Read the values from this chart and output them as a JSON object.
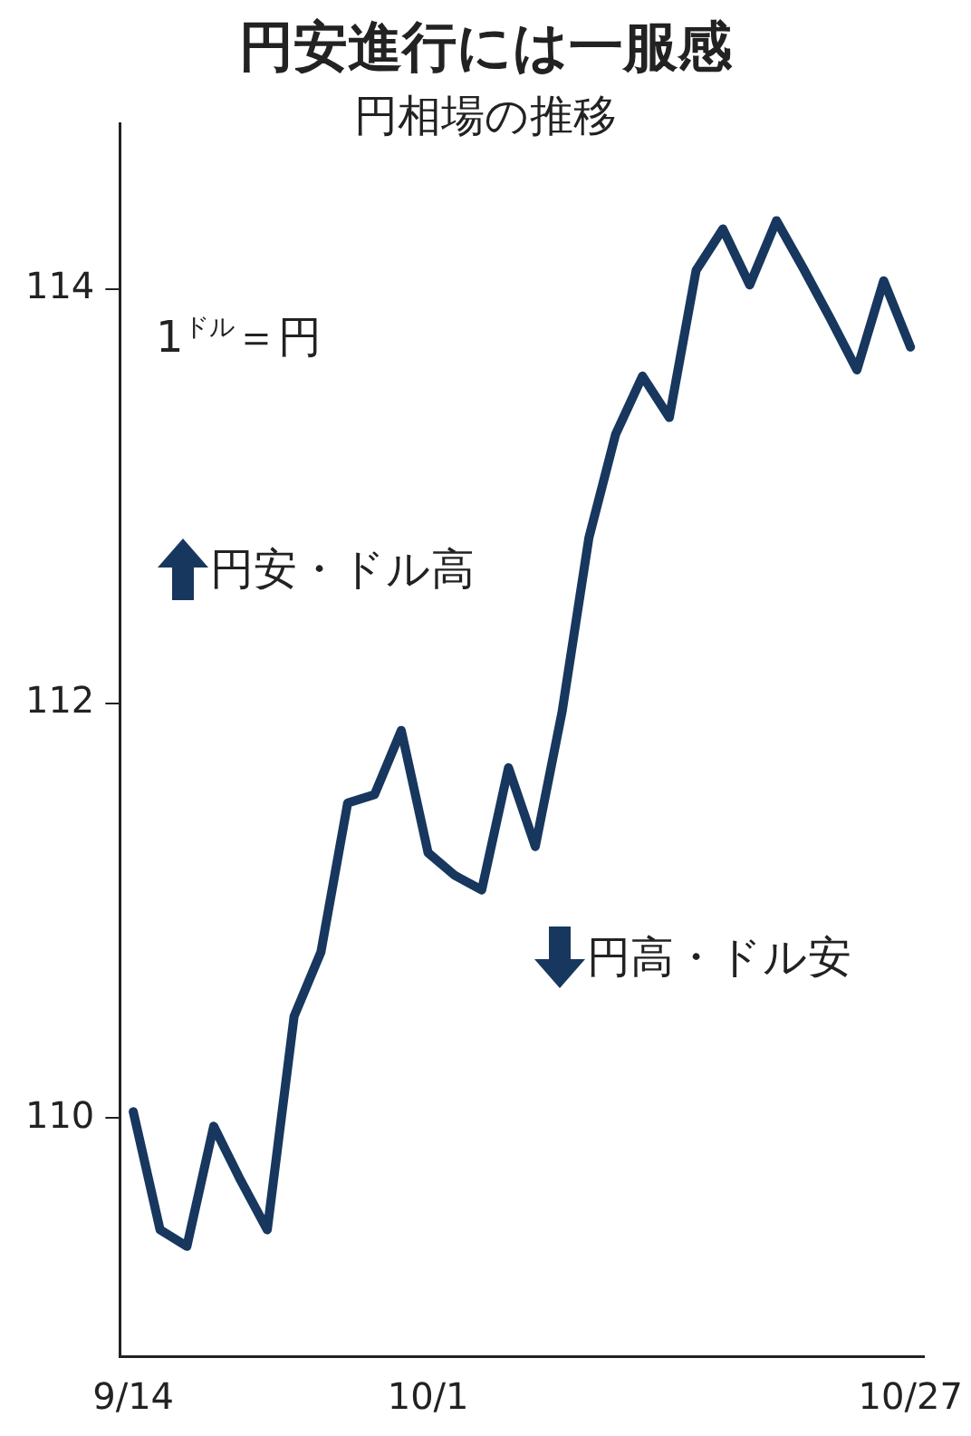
{
  "chart_data": {
    "type": "line",
    "title": "円安進行には一服感",
    "subtitle": "円相場の推移",
    "annotations": [
      "1$^{ドル}$＝円",
      "円安・ドル高",
      "円高・ドル安"
    ],
    "categories": [
      "9/14",
      null,
      null,
      null,
      null,
      null,
      null,
      null,
      null,
      null,
      null,
      "10/1",
      null,
      null,
      null,
      null,
      null,
      null,
      null,
      null,
      null,
      null,
      null,
      null,
      null,
      null,
      null,
      null,
      null,
      "10/27"
    ],
    "series": [
      {
        "color": "#17375e",
        "values": [
          110.03,
          109.46,
          109.38,
          109.96,
          109.7,
          109.46,
          110.49,
          110.8,
          111.52,
          111.56,
          111.87,
          111.28,
          111.17,
          111.1,
          111.69,
          111.31,
          111.96,
          112.8,
          113.3,
          113.58,
          113.38,
          114.09,
          114.29,
          114.02,
          114.33,
          114.1,
          113.86,
          113.61,
          114.04,
          113.72
        ]
      }
    ],
    "ylim": [
      108.85,
      114.8
    ],
    "yticks": [
      110,
      112,
      114
    ],
    "grid": false,
    "legend": false,
    "marker": "none",
    "line_style": "solid"
  }
}
